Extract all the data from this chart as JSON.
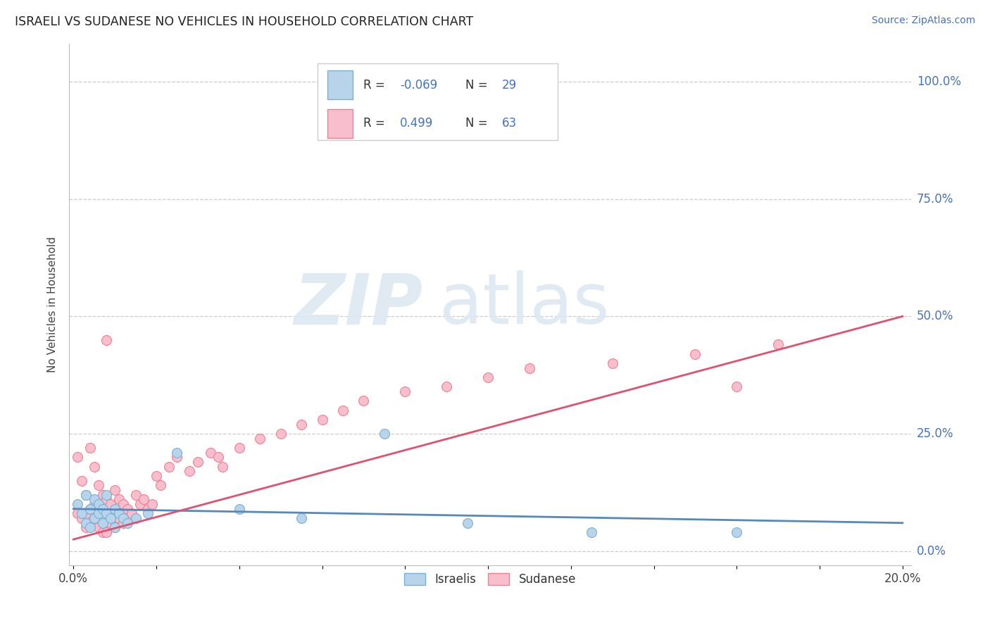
{
  "title": "ISRAELI VS SUDANESE NO VEHICLES IN HOUSEHOLD CORRELATION CHART",
  "source_text": "Source: ZipAtlas.com",
  "ylabel": "No Vehicles in Household",
  "xlim": [
    0.0,
    0.2
  ],
  "ylim": [
    0.0,
    1.05
  ],
  "ytick_labels": [
    "0.0%",
    "25.0%",
    "50.0%",
    "75.0%",
    "100.0%"
  ],
  "ytick_values": [
    0.0,
    0.25,
    0.5,
    0.75,
    1.0
  ],
  "xtick_values": [
    0.0,
    0.02,
    0.04,
    0.06,
    0.08,
    0.1,
    0.12,
    0.14,
    0.16,
    0.18,
    0.2
  ],
  "xtick_labels": [
    "0.0%",
    "",
    "",
    "",
    "",
    "",
    "",
    "",
    "",
    "",
    "20.0%"
  ],
  "israeli_color": "#b8d4ea",
  "sudanese_color": "#f9bece",
  "israeli_edge_color": "#7ab0d4",
  "sudanese_edge_color": "#f08090",
  "israeli_line_color": "#5588bb",
  "sudanese_line_color": "#e05070",
  "israeli_R": -0.069,
  "israeli_N": 29,
  "sudanese_R": 0.499,
  "sudanese_N": 63,
  "legend_labels": [
    "Israelis",
    "Sudanese"
  ],
  "israeli_scatter_x": [
    0.001,
    0.002,
    0.003,
    0.003,
    0.004,
    0.004,
    0.005,
    0.005,
    0.006,
    0.006,
    0.007,
    0.007,
    0.008,
    0.008,
    0.009,
    0.01,
    0.01,
    0.011,
    0.012,
    0.013,
    0.015,
    0.018,
    0.025,
    0.04,
    0.055,
    0.075,
    0.095,
    0.125,
    0.16
  ],
  "israeli_scatter_y": [
    0.1,
    0.08,
    0.12,
    0.06,
    0.09,
    0.05,
    0.11,
    0.07,
    0.1,
    0.08,
    0.09,
    0.06,
    0.08,
    0.12,
    0.07,
    0.09,
    0.05,
    0.08,
    0.07,
    0.06,
    0.07,
    0.08,
    0.21,
    0.09,
    0.07,
    0.25,
    0.06,
    0.04,
    0.04
  ],
  "sudanese_scatter_x": [
    0.001,
    0.001,
    0.002,
    0.002,
    0.003,
    0.003,
    0.003,
    0.004,
    0.004,
    0.004,
    0.005,
    0.005,
    0.005,
    0.006,
    0.006,
    0.006,
    0.007,
    0.007,
    0.007,
    0.008,
    0.008,
    0.008,
    0.009,
    0.009,
    0.01,
    0.01,
    0.01,
    0.011,
    0.011,
    0.012,
    0.012,
    0.013,
    0.014,
    0.015,
    0.016,
    0.017,
    0.018,
    0.019,
    0.02,
    0.021,
    0.023,
    0.025,
    0.028,
    0.03,
    0.033,
    0.036,
    0.04,
    0.045,
    0.05,
    0.055,
    0.06,
    0.065,
    0.07,
    0.08,
    0.09,
    0.1,
    0.11,
    0.13,
    0.15,
    0.17,
    0.008,
    0.035,
    0.16
  ],
  "sudanese_scatter_y": [
    0.2,
    0.08,
    0.15,
    0.07,
    0.12,
    0.08,
    0.05,
    0.22,
    0.09,
    0.06,
    0.18,
    0.1,
    0.06,
    0.14,
    0.09,
    0.05,
    0.12,
    0.08,
    0.04,
    0.11,
    0.07,
    0.04,
    0.1,
    0.06,
    0.13,
    0.08,
    0.05,
    0.11,
    0.07,
    0.1,
    0.06,
    0.09,
    0.08,
    0.12,
    0.1,
    0.11,
    0.09,
    0.1,
    0.16,
    0.14,
    0.18,
    0.2,
    0.17,
    0.19,
    0.21,
    0.18,
    0.22,
    0.24,
    0.25,
    0.27,
    0.28,
    0.3,
    0.32,
    0.34,
    0.35,
    0.37,
    0.39,
    0.4,
    0.42,
    0.44,
    0.45,
    0.2,
    0.35
  ],
  "watermark_zip_color": "#dde8f0",
  "watermark_atlas_color": "#dde8f0",
  "right_label_color": "#4472c4",
  "title_color": "#222222",
  "source_color": "#4472c4"
}
